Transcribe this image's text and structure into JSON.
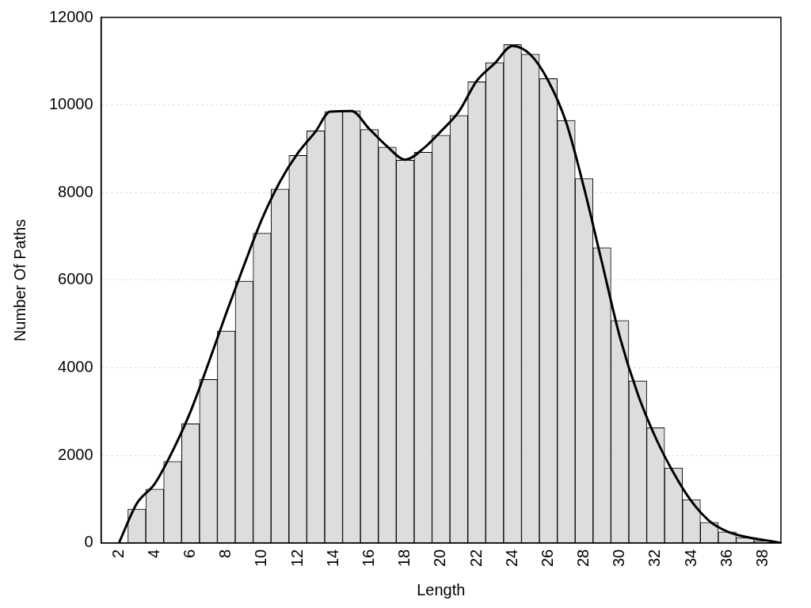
{
  "chart_data": {
    "type": "histogram",
    "xlabel": "Length",
    "ylabel": "Number Of Paths",
    "xlim": [
      1,
      39
    ],
    "xticks": [
      2,
      4,
      6,
      8,
      10,
      12,
      14,
      16,
      18,
      20,
      22,
      24,
      26,
      28,
      30,
      32,
      34,
      36,
      38
    ],
    "ylim": [
      0,
      12000
    ],
    "yticks": [
      0,
      2000,
      4000,
      6000,
      8000,
      10000,
      12000
    ],
    "grid": "y",
    "legend": false,
    "marker": "none",
    "line_style": "solid",
    "series": [
      {
        "color": "#dddddd",
        "bins": [
          2.5,
          3.5,
          4.5,
          5.5,
          6.5,
          7.5,
          8.5,
          9.5,
          10.5,
          11.5,
          12.5,
          13.5,
          14.5,
          15.5,
          16.5,
          17.5,
          18.5,
          19.5,
          20.5,
          21.5,
          22.5,
          23.5,
          24.5,
          25.5,
          26.5,
          27.5,
          28.5,
          29.5,
          30.5,
          31.5,
          32.5,
          33.5,
          34.5,
          35.5,
          36.5,
          37.5,
          38.5
        ],
        "values": [
          770,
          1230,
          1860,
          2720,
          3730,
          4840,
          5980,
          7070,
          8080,
          8850,
          9410,
          9850,
          9870,
          9440,
          9040,
          8740,
          8920,
          9310,
          9760,
          10530,
          10970,
          11380,
          11160,
          10600,
          9650,
          8320,
          6740,
          5080,
          3700,
          2630,
          1710,
          990,
          470,
          250,
          120,
          50
        ]
      },
      {
        "type": "line",
        "color": "#000000",
        "x": [
          2,
          3,
          4,
          5,
          6,
          7,
          8,
          9,
          10,
          11,
          12,
          13,
          13.8,
          15,
          16,
          17,
          18,
          19,
          20,
          21,
          22,
          23,
          24,
          25,
          26,
          27,
          28,
          29,
          30,
          31,
          32,
          33,
          34,
          35,
          36,
          37,
          38,
          39
        ],
        "values": [
          0,
          900,
          1350,
          2100,
          3000,
          4100,
          5250,
          6350,
          7400,
          8250,
          8900,
          9400,
          9850,
          9860,
          9450,
          9050,
          8750,
          9000,
          9400,
          9850,
          10550,
          10950,
          11350,
          11150,
          10550,
          9600,
          8100,
          6400,
          4700,
          3400,
          2400,
          1600,
          950,
          500,
          260,
          140,
          70,
          0
        ]
      }
    ]
  }
}
